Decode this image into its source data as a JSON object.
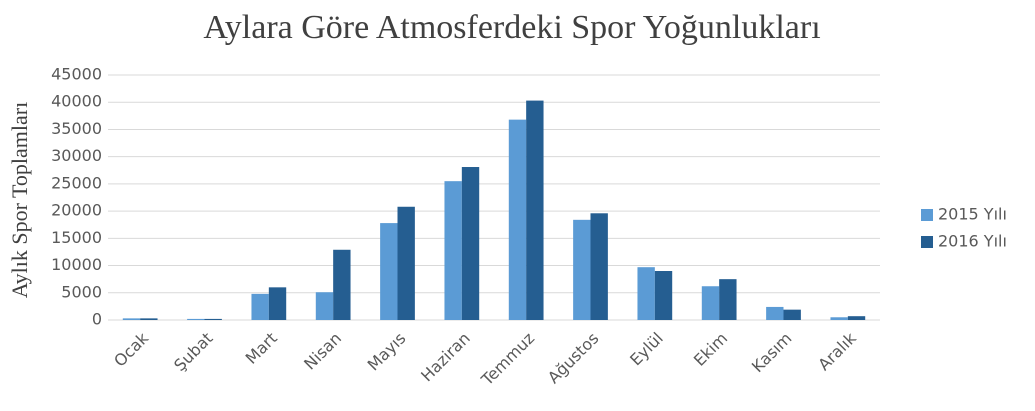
{
  "chart_data": {
    "type": "bar",
    "title": "Aylara Göre Atmosferdeki Spor Yoğunlukları",
    "y_label": "Aylık Spor Toplamları",
    "categories": [
      "Ocak",
      "Şubat",
      "Mart",
      "Nisan",
      "Mayıs",
      "Haziran",
      "Temmuz",
      "Ağustos",
      "Eylül",
      "Ekim",
      "Kasım",
      "Aralık"
    ],
    "series": [
      {
        "name": "2015 Yılı",
        "color": "#5b9bd5",
        "values": [
          300,
          200,
          4800,
          5100,
          17800,
          25500,
          36800,
          18400,
          9700,
          6200,
          2400,
          500
        ]
      },
      {
        "name": "2016 Yılı",
        "color": "#255e91",
        "values": [
          300,
          200,
          6000,
          12900,
          20800,
          28100,
          40300,
          19600,
          9000,
          7500,
          1900,
          700
        ]
      }
    ],
    "ylim": [
      0,
      45000
    ],
    "yticks": [
      0,
      5000,
      10000,
      15000,
      20000,
      25000,
      30000,
      35000,
      40000,
      45000
    ],
    "grid": true,
    "legend": "right"
  }
}
